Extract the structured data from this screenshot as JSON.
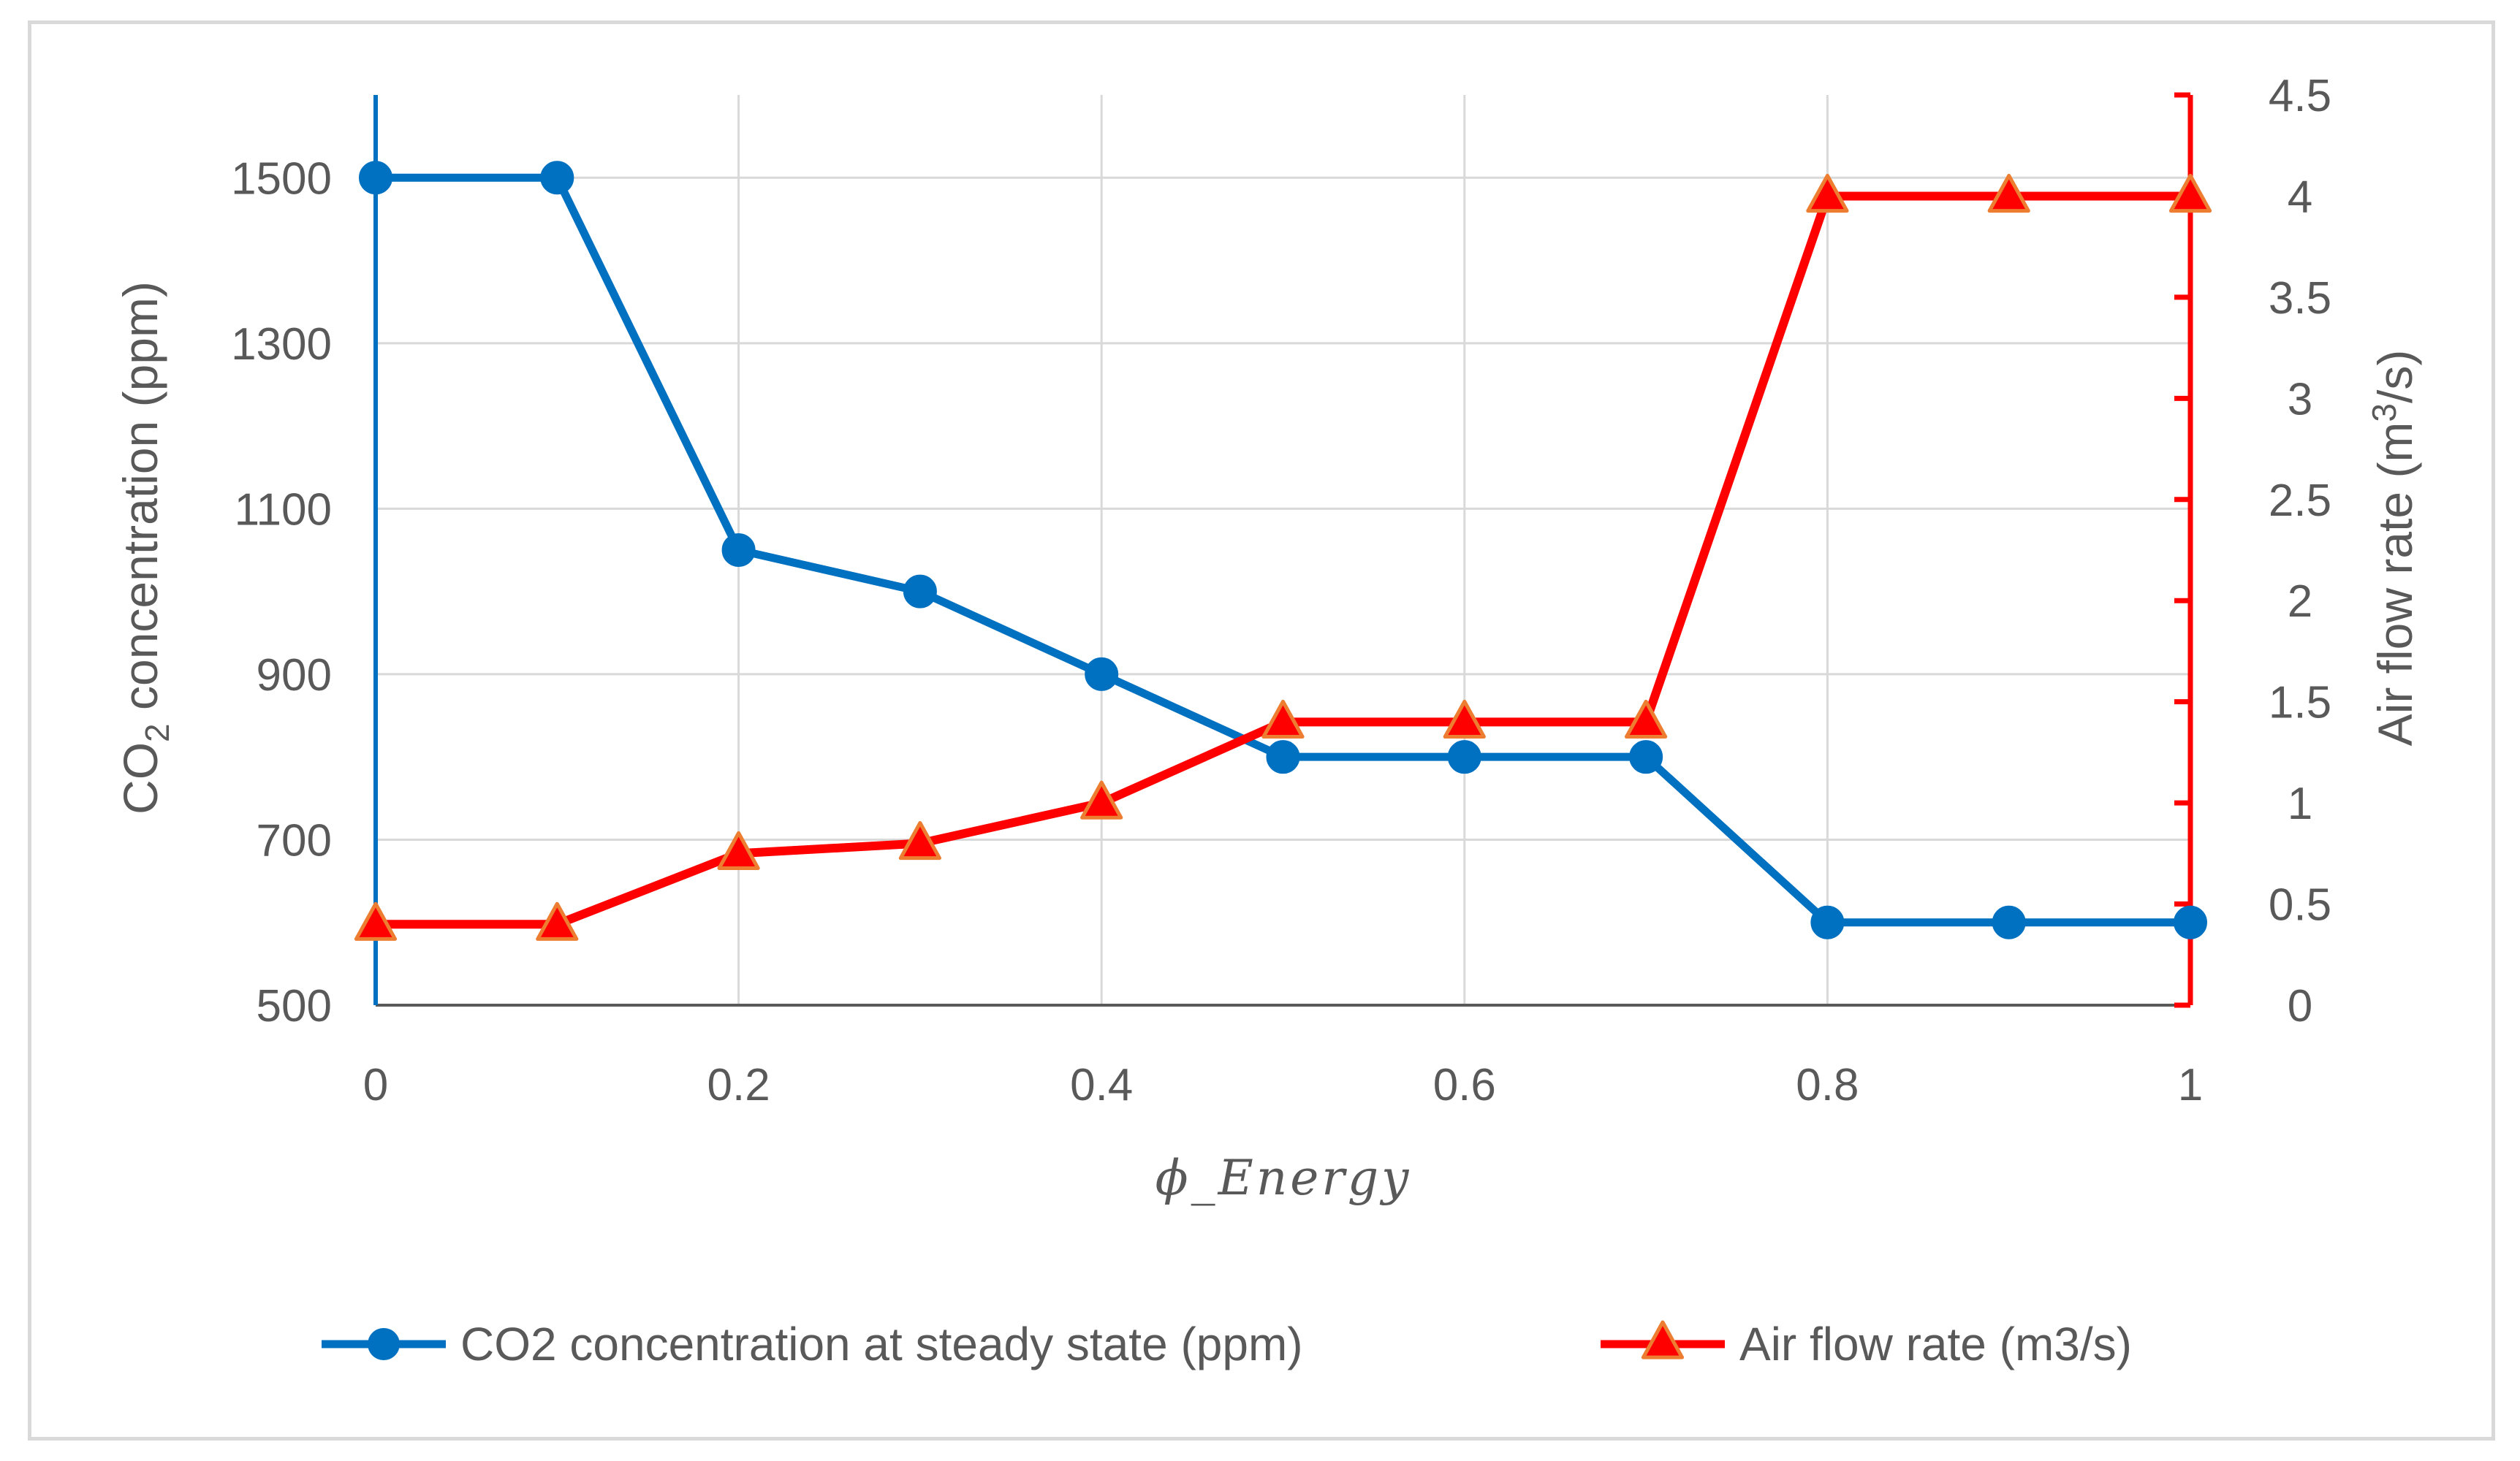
{
  "chart_data": {
    "type": "line",
    "title": "",
    "xlabel": "ϕ_Energy",
    "x": [
      0,
      0.1,
      0.2,
      0.3,
      0.4,
      0.5,
      0.6,
      0.7,
      0.8,
      0.9,
      1
    ],
    "xlim": [
      0,
      1
    ],
    "x_ticks": [
      "0",
      "0.2",
      "0.4",
      "0.6",
      "0.8",
      "1"
    ],
    "x_tick_values": [
      0,
      0.2,
      0.4,
      0.6,
      0.8,
      1
    ],
    "y_left": {
      "label_main": "CO",
      "label_sub": "2",
      "label_rest": " concentration (ppm)",
      "lim": [
        500,
        1600
      ],
      "ticks": [
        "500",
        "700",
        "900",
        "1100",
        "1300",
        "1500"
      ],
      "tick_values": [
        500,
        700,
        900,
        1100,
        1300,
        1500
      ],
      "color": "#0070c0"
    },
    "y_right": {
      "label_main": "Air flow rate (m",
      "label_sup": "3",
      "label_rest": "/s)",
      "lim": [
        0,
        4.5
      ],
      "ticks": [
        "0",
        "0.5",
        "1",
        "1.5",
        "2",
        "2.5",
        "3",
        "3.5",
        "4",
        "4.5"
      ],
      "tick_values": [
        0,
        0.5,
        1,
        1.5,
        2,
        2.5,
        3,
        3.5,
        4,
        4.5
      ],
      "color": "#ff0000"
    },
    "grid": true,
    "legend_position": "bottom",
    "series": [
      {
        "name": "CO2 concentration at steady state (ppm)",
        "axis": "left",
        "marker": "circle",
        "color": "#0070c0",
        "values": [
          1500,
          1500,
          1050,
          1000,
          900,
          800,
          800,
          800,
          600,
          600,
          600
        ]
      },
      {
        "name": "Air flow rate (m3/s)",
        "axis": "right",
        "marker": "triangle",
        "color": "#ff0000",
        "marker_fill": "#ff0000",
        "marker_edge": "#ed7d31",
        "values": [
          0.4,
          0.4,
          0.75,
          0.8,
          1.0,
          1.4,
          1.4,
          1.4,
          4.0,
          4.0,
          4.0
        ]
      }
    ]
  }
}
